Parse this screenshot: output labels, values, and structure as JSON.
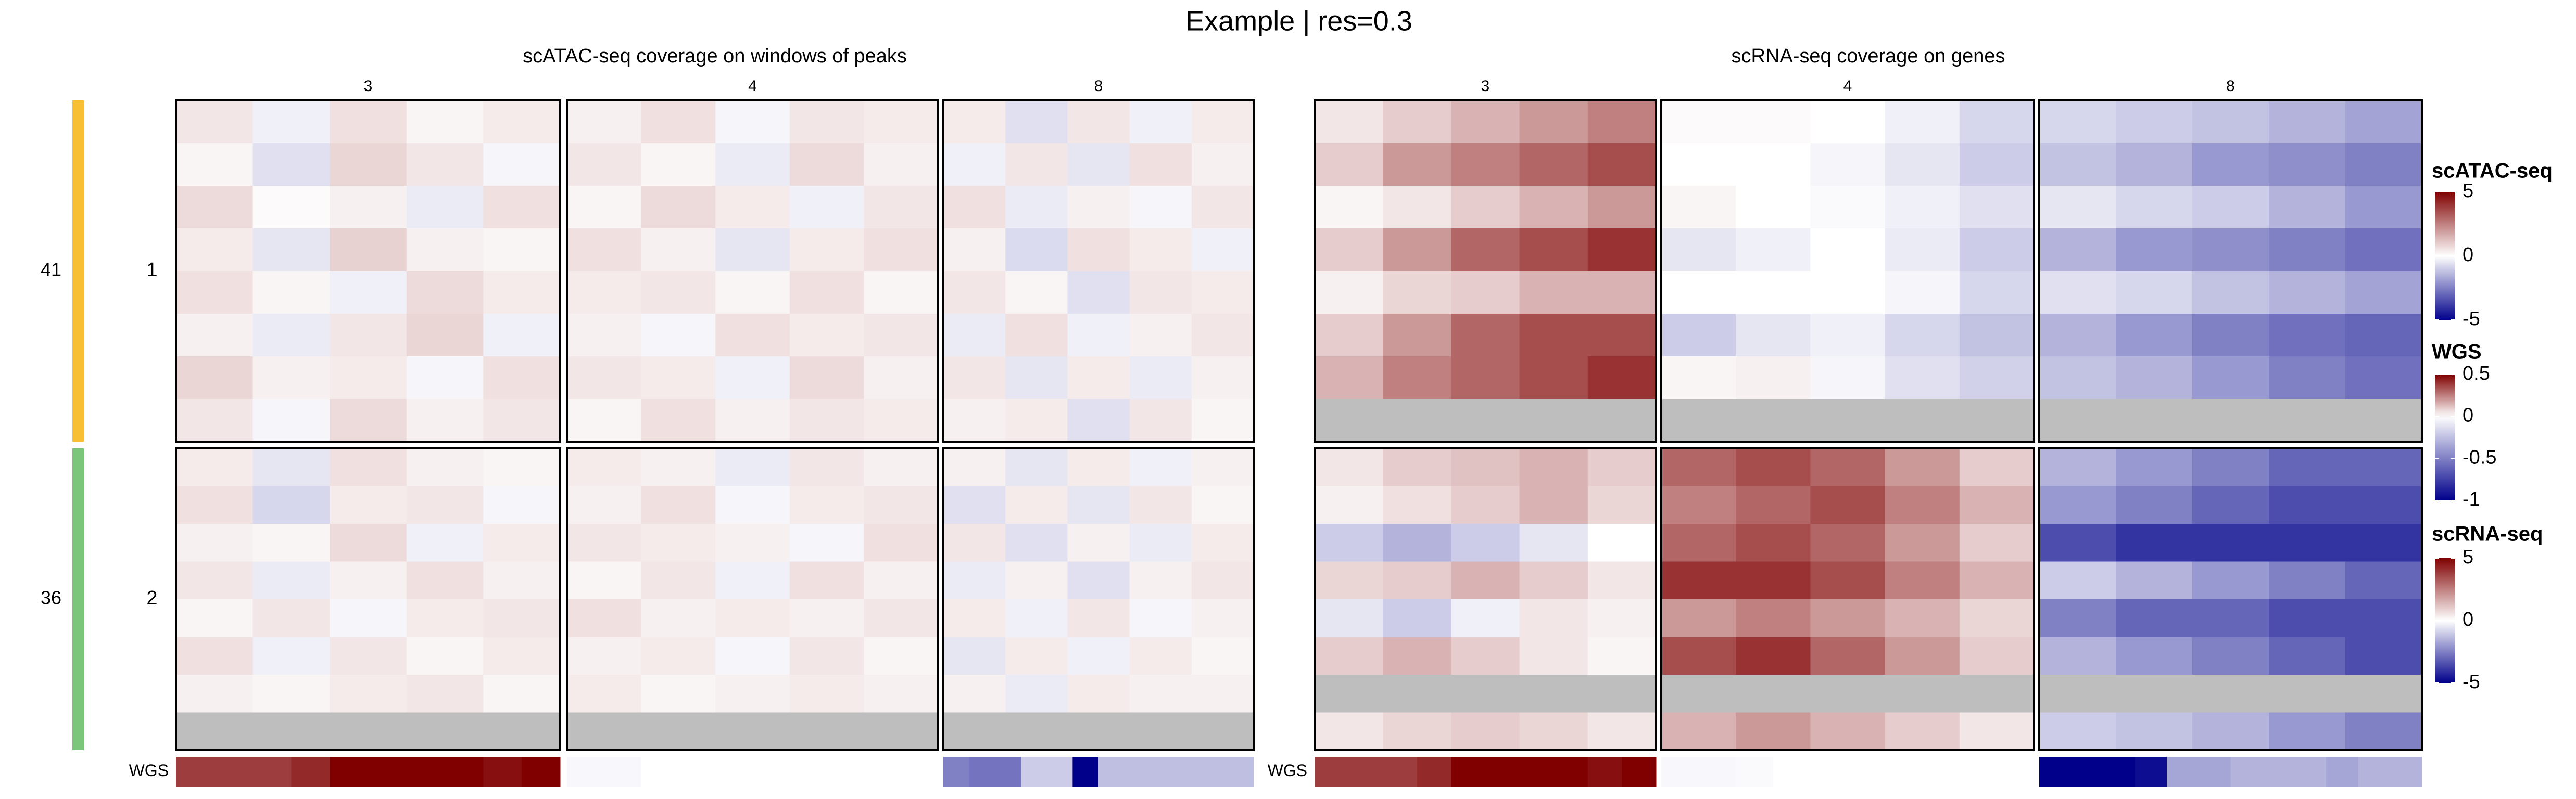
{
  "chart_data": {
    "type": "heatmap",
    "title": "Example | res=0.3",
    "row_clusters": [
      {
        "label": "1",
        "size": 41,
        "color": "#f8be34"
      },
      {
        "label": "2",
        "size": 36,
        "color": "#7bc67b"
      }
    ],
    "scales": [
      {
        "name": "scATAC-seq",
        "lim": [
          -5,
          5
        ],
        "ticks": [
          5,
          0,
          -5
        ],
        "colors": [
          "#00008b",
          "#ffffff",
          "#800000"
        ]
      },
      {
        "name": "WGS",
        "lim": [
          -1,
          0.5
        ],
        "ticks": [
          0.5,
          0,
          -0.5,
          -1
        ],
        "colors": [
          "#00008b",
          "#ffffff",
          "#800000"
        ]
      },
      {
        "name": "scRNA-seq",
        "lim": [
          -5,
          5
        ],
        "ticks": [
          5,
          0,
          -5
        ],
        "colors": [
          "#00008b",
          "#ffffff",
          "#800000"
        ]
      }
    ],
    "wgs_scale": 1,
    "groups": [
      {
        "title": "scATAC-seq coverage on windows of peaks",
        "scale": 0,
        "columns": [
          {
            "name": "3",
            "cells": [
              [
                [
                  0.5,
                  -0.3,
                  0.6,
                  0.2,
                  0.4
                ],
                [
                  0.2,
                  -0.6,
                  0.8,
                  0.5,
                  -0.2
                ],
                [
                  0.7,
                  0.1,
                  0.3,
                  -0.4,
                  0.6
                ],
                [
                  0.4,
                  -0.5,
                  0.9,
                  0.3,
                  0.2
                ],
                [
                  0.6,
                  0.2,
                  -0.3,
                  0.7,
                  0.4
                ],
                [
                  0.3,
                  -0.4,
                  0.5,
                  0.8,
                  -0.3
                ],
                [
                  0.8,
                  0.3,
                  0.4,
                  -0.2,
                  0.6
                ],
                [
                  0.5,
                  -0.2,
                  0.7,
                  0.3,
                  0.5
                ]
              ],
              [
                [
                  0.4,
                  -0.5,
                  0.6,
                  0.3,
                  0.2
                ],
                [
                  0.6,
                  -0.8,
                  0.4,
                  0.5,
                  -0.2
                ],
                [
                  0.3,
                  0.2,
                  0.7,
                  -0.3,
                  0.4
                ],
                [
                  0.5,
                  -0.4,
                  0.3,
                  0.6,
                  0.3
                ],
                [
                  0.2,
                  0.5,
                  -0.2,
                  0.4,
                  0.5
                ],
                [
                  0.6,
                  -0.3,
                  0.5,
                  0.2,
                  0.4
                ],
                [
                  0.3,
                  0.2,
                  0.4,
                  0.5,
                  0.2
                ],
                [
                  null,
                  null,
                  null,
                  null,
                  null
                ]
              ]
            ],
            "wgs": [
              0.38,
              0.38,
              0.38,
              0.42,
              0.5,
              0.5,
              0.5,
              0.5,
              0.47,
              0.5
            ]
          },
          {
            "name": "4",
            "cells": [
              [
                [
                  0.3,
                  0.6,
                  -0.2,
                  0.5,
                  0.4
                ],
                [
                  0.5,
                  0.2,
                  -0.4,
                  0.7,
                  0.3
                ],
                [
                  0.2,
                  0.7,
                  0.4,
                  -0.3,
                  0.5
                ],
                [
                  0.6,
                  0.3,
                  -0.5,
                  0.4,
                  0.6
                ],
                [
                  0.4,
                  0.5,
                  0.2,
                  0.6,
                  0.2
                ],
                [
                  0.3,
                  -0.2,
                  0.6,
                  0.4,
                  0.5
                ],
                [
                  0.5,
                  0.4,
                  -0.3,
                  0.7,
                  0.3
                ],
                [
                  0.2,
                  0.6,
                  0.3,
                  0.5,
                  0.4
                ]
              ],
              [
                [
                  0.4,
                  0.3,
                  -0.4,
                  0.5,
                  0.3
                ],
                [
                  0.3,
                  0.6,
                  -0.2,
                  0.4,
                  0.5
                ],
                [
                  0.5,
                  0.4,
                  0.3,
                  -0.2,
                  0.6
                ],
                [
                  0.2,
                  0.5,
                  -0.3,
                  0.6,
                  0.3
                ],
                [
                  0.6,
                  0.3,
                  0.4,
                  0.3,
                  0.5
                ],
                [
                  0.3,
                  0.4,
                  -0.2,
                  0.5,
                  0.2
                ],
                [
                  0.4,
                  0.2,
                  0.3,
                  0.4,
                  0.3
                ],
                [
                  null,
                  null,
                  null,
                  null,
                  null
                ]
              ]
            ],
            "wgs": [
              -0.03,
              -0.03,
              0,
              0,
              0,
              0,
              0,
              0,
              0,
              0
            ]
          },
          {
            "name": "8",
            "cells": [
              [
                [
                  0.4,
                  -0.6,
                  0.5,
                  -0.3,
                  0.4
                ],
                [
                  -0.3,
                  0.5,
                  -0.5,
                  0.6,
                  0.3
                ],
                [
                  0.6,
                  -0.4,
                  0.3,
                  -0.2,
                  0.5
                ],
                [
                  0.3,
                  -0.7,
                  0.6,
                  0.4,
                  -0.3
                ],
                [
                  0.5,
                  0.2,
                  -0.6,
                  0.5,
                  0.4
                ],
                [
                  -0.4,
                  0.6,
                  -0.3,
                  0.3,
                  0.5
                ],
                [
                  0.5,
                  -0.5,
                  0.4,
                  -0.4,
                  0.3
                ],
                [
                  0.3,
                  0.4,
                  -0.6,
                  0.5,
                  0.2
                ]
              ],
              [
                [
                  0.3,
                  -0.5,
                  0.4,
                  -0.3,
                  0.3
                ],
                [
                  -0.6,
                  0.4,
                  -0.5,
                  0.5,
                  0.2
                ],
                [
                  0.5,
                  -0.6,
                  0.3,
                  -0.4,
                  0.4
                ],
                [
                  -0.4,
                  0.3,
                  -0.6,
                  0.3,
                  0.5
                ],
                [
                  0.4,
                  -0.3,
                  0.5,
                  -0.2,
                  0.3
                ],
                [
                  -0.5,
                  0.4,
                  -0.3,
                  0.4,
                  0.2
                ],
                [
                  0.3,
                  -0.4,
                  0.4,
                  0.3,
                  0.3
                ],
                [
                  null,
                  null,
                  null,
                  null,
                  null
                ]
              ]
            ],
            "wgs": [
              -0.5,
              -0.55,
              -0.55,
              -0.2,
              -0.2,
              -1,
              -0.25,
              -0.25,
              -0.25,
              -0.25,
              -0.25,
              -0.25
            ]
          }
        ]
      },
      {
        "title": "scRNA-seq coverage on genes",
        "scale": 2,
        "columns": [
          {
            "name": "3",
            "cells": [
              [
                [
                  0.5,
                  1,
                  1.5,
                  2,
                  2.5
                ],
                [
                  1,
                  2,
                  2.5,
                  3,
                  3.5
                ],
                [
                  0.2,
                  0.5,
                  1,
                  1.5,
                  2
                ],
                [
                  1,
                  2,
                  3,
                  3.5,
                  4
                ],
                [
                  0.3,
                  0.8,
                  1,
                  1.5,
                  1.5
                ],
                [
                  1,
                  2,
                  3,
                  3.5,
                  3.5
                ],
                [
                  1.5,
                  2.5,
                  3,
                  3.5,
                  4
                ],
                [
                  null,
                  null,
                  null,
                  null,
                  null
                ]
              ],
              [
                [
                  0.5,
                  1,
                  1.2,
                  1.5,
                  1
                ],
                [
                  0.3,
                  0.6,
                  1,
                  1.5,
                  0.8
                ],
                [
                  -1,
                  -1.5,
                  -1,
                  -0.5,
                  0
                ],
                [
                  0.8,
                  1,
                  1.5,
                  1,
                  0.5
                ],
                [
                  -0.5,
                  -1,
                  -0.3,
                  0.5,
                  0.3
                ],
                [
                  1,
                  1.5,
                  1,
                  0.5,
                  0.2
                ],
                [
                  null,
                  null,
                  null,
                  null,
                  null
                ],
                [
                  0.5,
                  0.8,
                  1,
                  0.8,
                  0.5
                ]
              ]
            ],
            "wgs": [
              0.38,
              0.38,
              0.38,
              0.42,
              0.5,
              0.5,
              0.5,
              0.5,
              0.47,
              0.5
            ]
          },
          {
            "name": "4",
            "cells": [
              [
                [
                  0.1,
                  0.1,
                  0,
                  -0.3,
                  -0.8
                ],
                [
                  0,
                  0,
                  -0.2,
                  -0.5,
                  -1
                ],
                [
                  0.2,
                  0,
                  -0.1,
                  -0.3,
                  -0.6
                ],
                [
                  -0.5,
                  -0.3,
                  0,
                  -0.4,
                  -1
                ],
                [
                  0,
                  0,
                  0,
                  -0.2,
                  -0.8
                ],
                [
                  -1,
                  -0.5,
                  -0.3,
                  -0.8,
                  -1.2
                ],
                [
                  0.2,
                  0.3,
                  -0.2,
                  -0.6,
                  -0.9
                ],
                [
                  null,
                  null,
                  null,
                  null,
                  null
                ]
              ],
              [
                [
                  3,
                  3.5,
                  3,
                  2,
                  1
                ],
                [
                  2.5,
                  3,
                  3.5,
                  2.5,
                  1.5
                ],
                [
                  3,
                  3.5,
                  3,
                  2,
                  1
                ],
                [
                  4,
                  4,
                  3.5,
                  2.5,
                  1.5
                ],
                [
                  2,
                  2.5,
                  2,
                  1.5,
                  0.8
                ],
                [
                  3.5,
                  4,
                  3,
                  2,
                  1
                ],
                [
                  null,
                  null,
                  null,
                  null,
                  null
                ],
                [
                  1.5,
                  2,
                  1.5,
                  1,
                  0.5
                ]
              ]
            ],
            "wgs": [
              -0.03,
              -0.03,
              -0.02,
              0,
              0,
              0,
              0,
              0,
              0,
              0
            ]
          },
          {
            "name": "8",
            "cells": [
              [
                [
                  -0.8,
                  -1,
                  -1.2,
                  -1.5,
                  -1.8
                ],
                [
                  -1.2,
                  -1.5,
                  -2,
                  -2.2,
                  -2.5
                ],
                [
                  -0.5,
                  -0.8,
                  -1,
                  -1.5,
                  -2
                ],
                [
                  -1.5,
                  -2,
                  -2.2,
                  -2.5,
                  -2.8
                ],
                [
                  -0.6,
                  -0.8,
                  -1.2,
                  -1.5,
                  -1.8
                ],
                [
                  -1.5,
                  -2,
                  -2.5,
                  -2.8,
                  -3
                ],
                [
                  -1.2,
                  -1.5,
                  -2,
                  -2.5,
                  -2.8
                ],
                [
                  null,
                  null,
                  null,
                  null,
                  null
                ]
              ],
              [
                [
                  -1.5,
                  -2,
                  -2.5,
                  -3,
                  -3
                ],
                [
                  -2,
                  -2.5,
                  -3,
                  -3.5,
                  -3.5
                ],
                [
                  -3.5,
                  -4,
                  -4,
                  -4,
                  -4
                ],
                [
                  -1,
                  -1.5,
                  -2,
                  -2.5,
                  -3
                ],
                [
                  -2.5,
                  -3,
                  -3,
                  -3.5,
                  -3.5
                ],
                [
                  -1.5,
                  -2,
                  -2.5,
                  -3,
                  -3.5
                ],
                [
                  null,
                  null,
                  null,
                  null,
                  null
                ],
                [
                  -1,
                  -1.2,
                  -1.5,
                  -2,
                  -2.5
                ]
              ]
            ],
            "wgs": [
              -1,
              -1,
              -1,
              -0.95,
              -0.35,
              -0.35,
              -0.3,
              -0.3,
              -0.3,
              -0.35,
              -0.3,
              -0.3
            ]
          }
        ]
      }
    ]
  }
}
